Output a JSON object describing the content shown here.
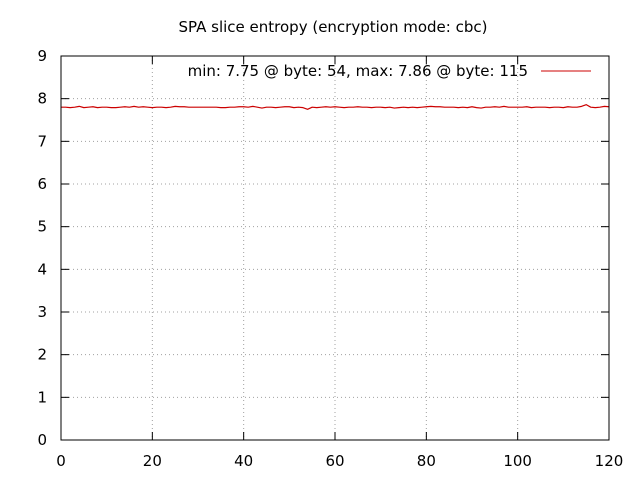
{
  "chart_data": {
    "type": "line",
    "title": "SPA slice entropy (encryption mode: cbc)",
    "xlabel": "",
    "ylabel": "",
    "xlim": [
      0,
      120
    ],
    "ylim": [
      0,
      9
    ],
    "x_ticks": [
      0,
      20,
      40,
      60,
      80,
      100,
      120
    ],
    "y_ticks": [
      0,
      1,
      2,
      3,
      4,
      5,
      6,
      7,
      8,
      9
    ],
    "grid": true,
    "legend_position": "top-right",
    "series": [
      {
        "name": "min: 7.75 @ byte: 54, max: 7.86 @ byte: 115",
        "color": "#cc0000",
        "x": [
          0,
          1,
          2,
          3,
          4,
          5,
          6,
          7,
          8,
          9,
          10,
          11,
          12,
          13,
          14,
          15,
          16,
          17,
          18,
          19,
          20,
          21,
          22,
          23,
          24,
          25,
          26,
          27,
          28,
          29,
          30,
          31,
          32,
          33,
          34,
          35,
          36,
          37,
          38,
          39,
          40,
          41,
          42,
          43,
          44,
          45,
          46,
          47,
          48,
          49,
          50,
          51,
          52,
          53,
          54,
          55,
          56,
          57,
          58,
          59,
          60,
          61,
          62,
          63,
          64,
          65,
          66,
          67,
          68,
          69,
          70,
          71,
          72,
          73,
          74,
          75,
          76,
          77,
          78,
          79,
          80,
          81,
          82,
          83,
          84,
          85,
          86,
          87,
          88,
          89,
          90,
          91,
          92,
          93,
          94,
          95,
          96,
          97,
          98,
          99,
          100,
          101,
          102,
          103,
          104,
          105,
          106,
          107,
          108,
          109,
          110,
          111,
          112,
          113,
          114,
          115,
          116,
          117,
          118,
          119,
          120
        ],
        "y": [
          7.8,
          7.8,
          7.79,
          7.8,
          7.82,
          7.79,
          7.8,
          7.81,
          7.79,
          7.8,
          7.8,
          7.79,
          7.79,
          7.8,
          7.81,
          7.8,
          7.82,
          7.8,
          7.81,
          7.8,
          7.79,
          7.8,
          7.8,
          7.79,
          7.8,
          7.82,
          7.81,
          7.81,
          7.8,
          7.8,
          7.8,
          7.8,
          7.8,
          7.8,
          7.8,
          7.79,
          7.79,
          7.8,
          7.8,
          7.81,
          7.81,
          7.8,
          7.82,
          7.8,
          7.78,
          7.8,
          7.8,
          7.79,
          7.8,
          7.81,
          7.81,
          7.79,
          7.8,
          7.79,
          7.75,
          7.8,
          7.79,
          7.8,
          7.81,
          7.8,
          7.81,
          7.8,
          7.79,
          7.8,
          7.8,
          7.81,
          7.8,
          7.8,
          7.79,
          7.8,
          7.8,
          7.79,
          7.8,
          7.78,
          7.79,
          7.8,
          7.79,
          7.8,
          7.79,
          7.8,
          7.81,
          7.82,
          7.81,
          7.81,
          7.8,
          7.8,
          7.8,
          7.79,
          7.8,
          7.79,
          7.81,
          7.79,
          7.78,
          7.8,
          7.8,
          7.81,
          7.8,
          7.82,
          7.8,
          7.8,
          7.8,
          7.8,
          7.81,
          7.79,
          7.8,
          7.8,
          7.8,
          7.79,
          7.8,
          7.8,
          7.79,
          7.81,
          7.8,
          7.8,
          7.82,
          7.86,
          7.8,
          7.79,
          7.8,
          7.82,
          7.81
        ]
      }
    ]
  }
}
